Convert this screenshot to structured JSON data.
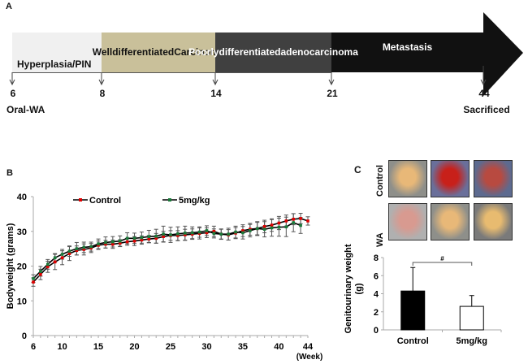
{
  "panel_a": {
    "label": "A",
    "stages": [
      {
        "name": "Hyperplasia/\nPIN",
        "start_week": 6,
        "end_week": 8,
        "color": "#f0f0f0",
        "text_color": "#111111"
      },
      {
        "name": "Well\ndifferentiated\nCarcinoma",
        "start_week": 8,
        "end_week": 14,
        "color": "#c9c09a",
        "text_color": "#111111"
      },
      {
        "name": "Poorly\ndifferentiated\nadenocarcinoma",
        "start_week": 14,
        "end_week": 21,
        "color": "#404040",
        "text_color": "#ffffff"
      },
      {
        "name": "Metastasis",
        "start_week": 21,
        "end_week": null,
        "color": "#111111",
        "text_color": "#ffffff"
      }
    ],
    "markers": [
      {
        "week": "6",
        "note": "Oral-WA"
      },
      {
        "week": "8",
        "note": ""
      },
      {
        "week": "14",
        "note": ""
      },
      {
        "week": "21",
        "note": ""
      },
      {
        "week": "44",
        "note": "Sacrificed"
      }
    ]
  },
  "panel_b": {
    "label": "B"
  },
  "panel_c": {
    "label": "C",
    "photo_rows": [
      {
        "label": "Control",
        "photos": [
          "normal-genitourinary-tract",
          "large-hemorrhagic-tumor",
          "tumor-with-seminal-vesicles"
        ]
      },
      {
        "label": "WA",
        "photos": [
          "inflamed-genitourinary-tract",
          "normal-genitourinary-tract",
          "enlarged-seminal-vesicles"
        ]
      }
    ]
  },
  "chart_data": [
    {
      "type": "line",
      "title": "",
      "xlabel": "(Week)",
      "ylabel": "Bodyweight (grams)",
      "xlim": [
        6,
        44
      ],
      "ylim": [
        0,
        40
      ],
      "xticks": [
        6,
        10,
        15,
        20,
        25,
        30,
        35,
        40,
        44
      ],
      "yticks": [
        0,
        10,
        20,
        30,
        40
      ],
      "grid": false,
      "legend_position": "top",
      "x": [
        6,
        7,
        8,
        9,
        10,
        11,
        12,
        13,
        14,
        15,
        16,
        17,
        18,
        19,
        20,
        21,
        22,
        23,
        24,
        25,
        26,
        27,
        28,
        29,
        30,
        31,
        32,
        33,
        34,
        35,
        36,
        37,
        38,
        39,
        40,
        41,
        42,
        43,
        44
      ],
      "series": [
        {
          "name": "Control",
          "line_color": "#000000",
          "marker_color": "#e00000",
          "values": [
            15.4,
            17.6,
            19.8,
            21.2,
            22.4,
            23.6,
            24.5,
            24.8,
            25.2,
            26.0,
            26.3,
            26.3,
            26.6,
            27.0,
            27.2,
            27.5,
            27.8,
            28.0,
            28.5,
            28.8,
            28.8,
            29.0,
            29.2,
            29.4,
            29.6,
            30.0,
            29.2,
            29.0,
            29.5,
            30.2,
            30.6,
            30.8,
            31.4,
            31.8,
            32.4,
            33.0,
            33.5,
            33.7,
            33.0
          ],
          "errors": [
            1.2,
            1.5,
            1.6,
            2.2,
            2.0,
            2.0,
            1.3,
            1.6,
            1.3,
            1.2,
            1.1,
            1.2,
            1.0,
            1.0,
            1.3,
            1.2,
            1.0,
            1.4,
            1.5,
            1.4,
            1.4,
            1.6,
            1.5,
            1.6,
            1.4,
            1.5,
            1.4,
            1.5,
            1.6,
            1.7,
            1.7,
            1.8,
            1.8,
            1.8,
            1.9,
            1.7,
            1.6,
            1.5,
            1.2
          ]
        },
        {
          "name": "5mg/kg",
          "line_color": "#000000",
          "marker_color": "#1a7a3a",
          "values": [
            16.4,
            18.5,
            20.5,
            22.4,
            23.4,
            24.3,
            25.0,
            25.4,
            25.6,
            26.4,
            26.8,
            27.0,
            27.2,
            28.0,
            28.0,
            28.2,
            28.5,
            28.6,
            29.2,
            29.0,
            29.3,
            29.5,
            29.6,
            29.8,
            30.2,
            29.4,
            29.2,
            29.2,
            29.8,
            29.6,
            30.2,
            30.8,
            30.6,
            31.0,
            31.2,
            31.3,
            32.5,
            31.7,
            null
          ],
          "errors": [
            1.1,
            1.4,
            1.4,
            1.2,
            1.4,
            1.5,
            1.8,
            1.5,
            1.3,
            1.4,
            1.6,
            1.5,
            1.5,
            1.6,
            1.5,
            1.6,
            1.8,
            2.0,
            2.3,
            2.2,
            2.0,
            2.0,
            1.7,
            1.5,
            1.4,
            1.3,
            1.5,
            1.7,
            1.7,
            1.8,
            1.8,
            2.0,
            2.2,
            2.4,
            2.6,
            2.8,
            2.6,
            2.3,
            null
          ]
        }
      ]
    },
    {
      "type": "bar",
      "title": "",
      "xlabel": "",
      "ylabel": "Genitourinary weight\n(g)",
      "ylim": [
        0,
        8
      ],
      "yticks": [
        0,
        2,
        4,
        6,
        8
      ],
      "grid": false,
      "categories": [
        "Control",
        "5mg/kg"
      ],
      "values": [
        4.3,
        2.6
      ],
      "errors": [
        2.6,
        1.2
      ],
      "bar_colors": [
        "#000000",
        "#ffffff"
      ],
      "annotations": [
        {
          "type": "significance-bracket",
          "between": [
            "Control",
            "5mg/kg"
          ],
          "text": "#"
        }
      ]
    }
  ]
}
